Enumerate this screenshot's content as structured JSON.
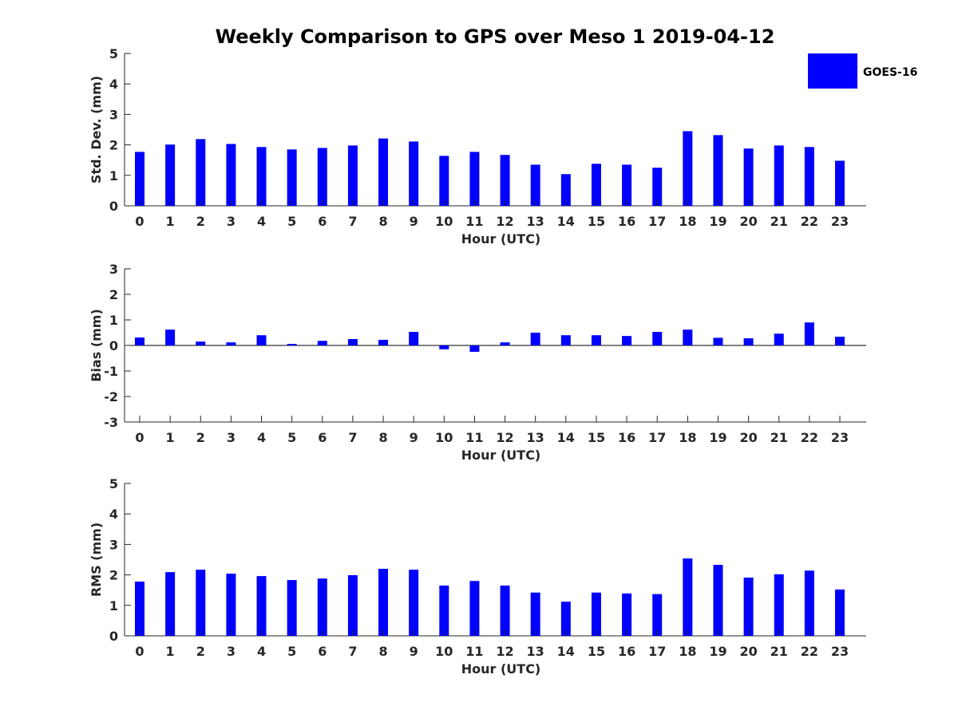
{
  "colors": {
    "bar": "#0000ff",
    "axis": "#262626",
    "background": "#ffffff"
  },
  "figure_title": "Weekly Comparison to GPS over Meso 1 2019-04-12",
  "legend": {
    "label": "GOES-16",
    "location": "top-right"
  },
  "chart_data": [
    {
      "type": "bar",
      "series_name": "GOES-16",
      "categories": [
        "0",
        "1",
        "2",
        "3",
        "4",
        "5",
        "6",
        "7",
        "8",
        "9",
        "10",
        "11",
        "12",
        "13",
        "14",
        "15",
        "16",
        "17",
        "18",
        "19",
        "20",
        "21",
        "22",
        "23"
      ],
      "values": [
        1.77,
        2.01,
        2.19,
        2.03,
        1.93,
        1.85,
        1.9,
        1.98,
        2.21,
        2.11,
        1.64,
        1.77,
        1.67,
        1.35,
        1.04,
        1.38,
        1.35,
        1.25,
        2.45,
        2.32,
        1.88,
        1.98,
        1.93,
        1.48
      ],
      "xlabel": "Hour (UTC)",
      "ylabel": "Std. Dev. (mm)",
      "ylim": [
        0,
        5
      ],
      "yticks": [
        "0",
        "1",
        "2",
        "3",
        "4",
        "5"
      ]
    },
    {
      "type": "bar",
      "series_name": "GOES-16",
      "categories": [
        "0",
        "1",
        "2",
        "3",
        "4",
        "5",
        "6",
        "7",
        "8",
        "9",
        "10",
        "11",
        "12",
        "13",
        "14",
        "15",
        "16",
        "17",
        "18",
        "19",
        "20",
        "21",
        "22",
        "23"
      ],
      "values": [
        0.31,
        0.62,
        0.15,
        0.12,
        0.4,
        0.06,
        0.18,
        0.25,
        0.22,
        0.53,
        -0.15,
        -0.25,
        0.12,
        0.5,
        0.4,
        0.4,
        0.37,
        0.53,
        0.62,
        0.3,
        0.28,
        0.46,
        0.9,
        0.34
      ],
      "xlabel": "Hour (UTC)",
      "ylabel": "Bias (mm)",
      "ylim": [
        -3,
        3
      ],
      "yticks": [
        "-3",
        "-2",
        "-1",
        "0",
        "1",
        "2",
        "3"
      ]
    },
    {
      "type": "bar",
      "series_name": "GOES-16",
      "categories": [
        "0",
        "1",
        "2",
        "3",
        "4",
        "5",
        "6",
        "7",
        "8",
        "9",
        "10",
        "11",
        "12",
        "13",
        "14",
        "15",
        "16",
        "17",
        "18",
        "19",
        "20",
        "21",
        "22",
        "23"
      ],
      "values": [
        1.78,
        2.09,
        2.17,
        2.04,
        1.96,
        1.83,
        1.88,
        1.99,
        2.2,
        2.17,
        1.65,
        1.8,
        1.65,
        1.42,
        1.12,
        1.42,
        1.39,
        1.37,
        2.54,
        2.33,
        1.91,
        2.02,
        2.14,
        1.52
      ],
      "xlabel": "Hour (UTC)",
      "ylabel": "RMS (mm)",
      "ylim": [
        0,
        5
      ],
      "yticks": [
        "0",
        "1",
        "2",
        "3",
        "4",
        "5"
      ]
    }
  ]
}
